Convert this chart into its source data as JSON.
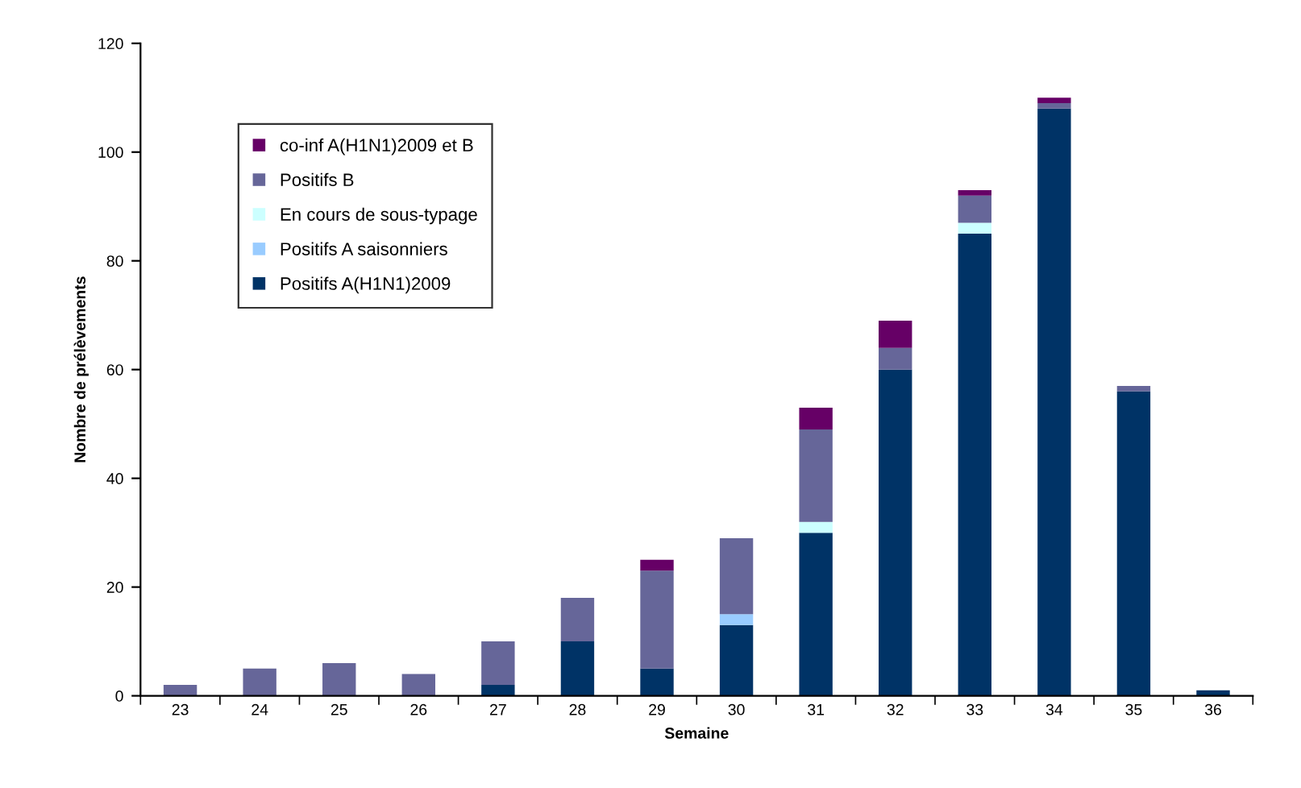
{
  "chart_data": {
    "type": "bar",
    "stacked": true,
    "xlabel": "Semaine",
    "ylabel": "Nombre de prélèvements",
    "categories": [
      "23",
      "24",
      "25",
      "26",
      "27",
      "28",
      "29",
      "30",
      "31",
      "32",
      "33",
      "34",
      "35",
      "36"
    ],
    "series": [
      {
        "name": "Positifs A(H1N1)2009",
        "color": "#003366",
        "values": [
          0,
          0,
          0,
          0,
          2,
          10,
          5,
          13,
          30,
          60,
          85,
          108,
          56,
          1
        ]
      },
      {
        "name": "Positifs A saisonniers",
        "color": "#99ccff",
        "values": [
          0,
          0,
          0,
          0,
          0,
          0,
          0,
          2,
          0,
          0,
          0,
          0,
          0,
          0
        ]
      },
      {
        "name": "En cours de sous-typage",
        "color": "#ccffff",
        "values": [
          0,
          0,
          0,
          0,
          0,
          0,
          0,
          0,
          2,
          0,
          2,
          0,
          0,
          0
        ]
      },
      {
        "name": "Positifs B",
        "color": "#666699",
        "values": [
          2,
          5,
          6,
          4,
          8,
          8,
          18,
          14,
          17,
          4,
          5,
          1,
          1,
          0
        ]
      },
      {
        "name": "co-inf A(H1N1)2009 et B",
        "color": "#660066",
        "values": [
          0,
          0,
          0,
          0,
          0,
          0,
          2,
          0,
          4,
          5,
          1,
          1,
          0,
          0
        ]
      }
    ],
    "ylim": [
      0,
      120
    ],
    "yticks": [
      0,
      20,
      40,
      60,
      80,
      100,
      120
    ],
    "grid": false,
    "legend": "top left"
  }
}
